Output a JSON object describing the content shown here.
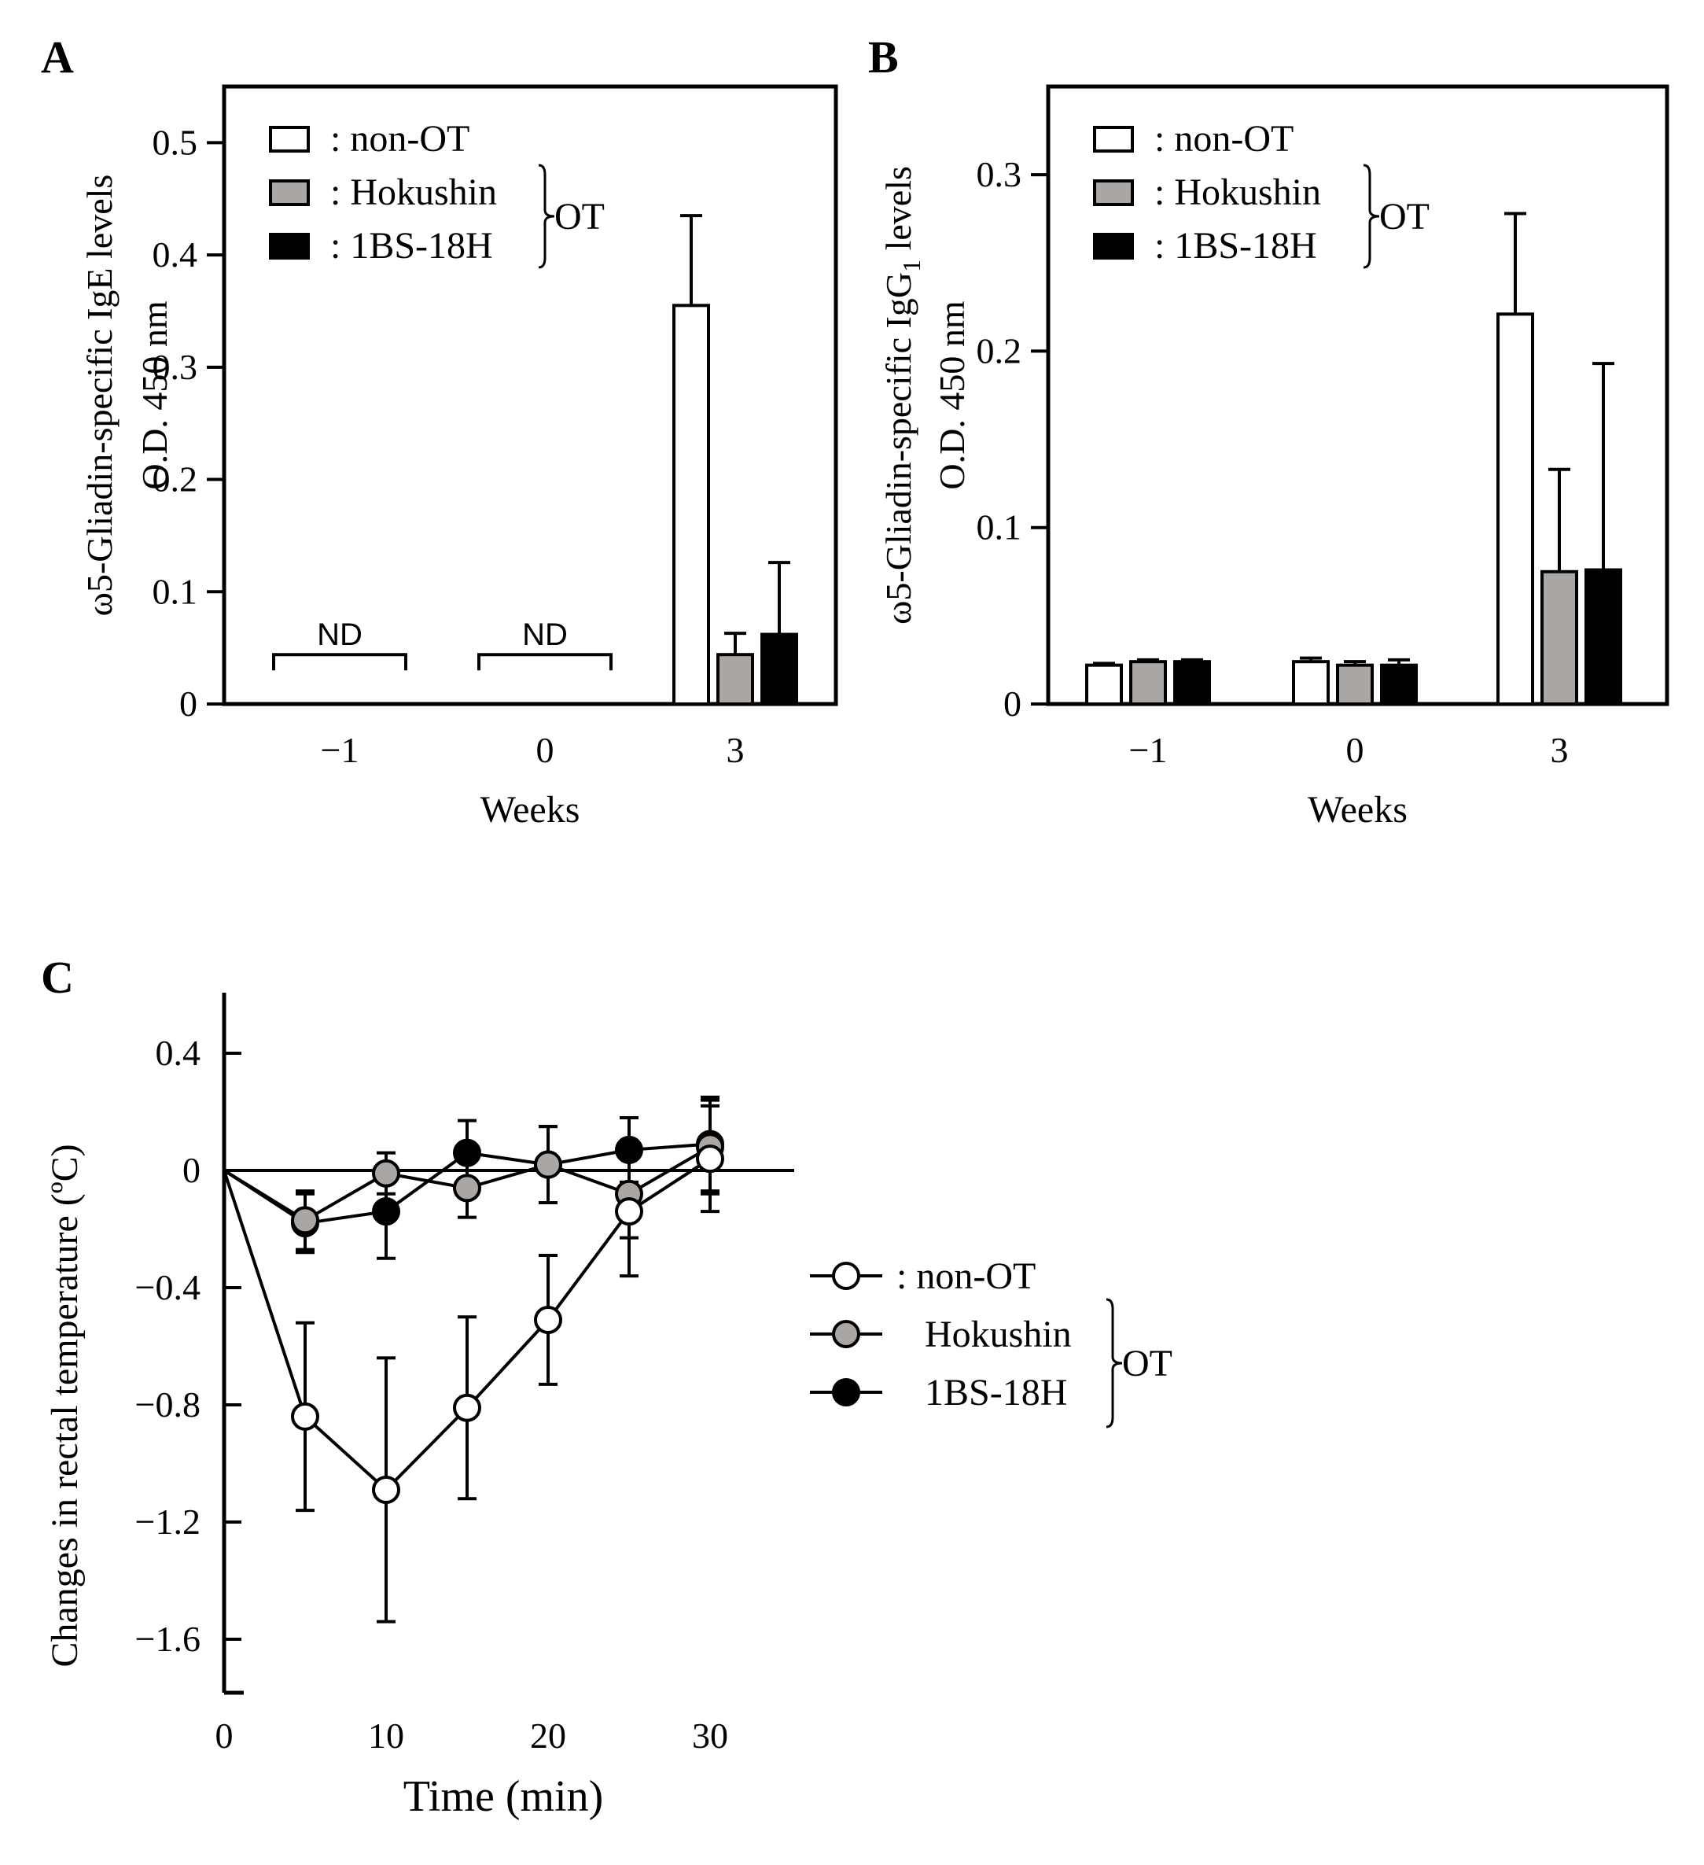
{
  "chart_data": [
    {
      "panel": "A",
      "type": "bar",
      "ylabel_line1_prefix": "ω5-Gliadin-specific IgE levels",
      "ylabel_line2": "O.D. 450 nm",
      "xlabel": "Weeks",
      "categories": [
        "−1",
        "0",
        "3"
      ],
      "ylim": [
        0,
        0.55
      ],
      "yticks": [
        0,
        0.1,
        0.2,
        0.3,
        0.4,
        0.5
      ],
      "ytick_labels": [
        "0",
        "0.1",
        "0.2",
        "0.3",
        "0.4",
        "0.5"
      ],
      "not_detected_label": "ND",
      "not_detected_categories": [
        0,
        1
      ],
      "series": [
        {
          "name": ": non-OT",
          "color": "#ffffff",
          "values": [
            null,
            null,
            0.355
          ],
          "errors": [
            null,
            null,
            0.08
          ]
        },
        {
          "name": ": Hokushin",
          "color": "#aaa6a3",
          "values": [
            null,
            null,
            0.044
          ],
          "errors": [
            null,
            null,
            0.019
          ]
        },
        {
          "name": ": 1BS-18H",
          "color": "#000000",
          "values": [
            null,
            null,
            0.062
          ],
          "errors": [
            null,
            null,
            0.064
          ]
        }
      ],
      "group_label": "OT"
    },
    {
      "panel": "B",
      "type": "bar",
      "ylabel_line1_prefix": "ω5-Gliadin-specific IgG",
      "ylabel_sub": "1",
      "ylabel_line1_suffix": " levels",
      "ylabel_line2": "O.D. 450 nm",
      "xlabel": "Weeks",
      "categories": [
        "−1",
        "0",
        "3"
      ],
      "ylim": [
        0,
        0.35
      ],
      "yticks": [
        0,
        0.1,
        0.2,
        0.3
      ],
      "ytick_labels": [
        "0",
        "0.1",
        "0.2",
        "0.3"
      ],
      "series": [
        {
          "name": ": non-OT",
          "color": "#ffffff",
          "values": [
            0.022,
            0.024,
            0.221
          ],
          "errors": [
            0.001,
            0.002,
            0.057
          ]
        },
        {
          "name": ": Hokushin",
          "color": "#aaa6a3",
          "values": [
            0.024,
            0.022,
            0.075
          ],
          "errors": [
            0.001,
            0.002,
            0.058
          ]
        },
        {
          "name": ": 1BS-18H",
          "color": "#000000",
          "values": [
            0.024,
            0.022,
            0.076
          ],
          "errors": [
            0.001,
            0.003,
            0.117
          ]
        }
      ],
      "group_label": "OT"
    },
    {
      "panel": "C",
      "type": "line",
      "ylabel": "Changes in rectal temperature (ºC)",
      "xlabel": "Time  (min)",
      "xlim": [
        0,
        35
      ],
      "ylim": [
        -1.85,
        0.6
      ],
      "xticks": [
        0,
        10,
        20,
        30
      ],
      "xtick_labels": [
        "0",
        "10",
        "20",
        "30"
      ],
      "yticks": [
        0.4,
        0,
        -0.4,
        -0.8,
        -1.2,
        -1.6
      ],
      "ytick_labels": [
        "0.4",
        "0",
        "−0.4",
        "−0.8",
        "−1.2",
        "−1.6"
      ],
      "x": [
        0,
        5,
        10,
        15,
        20,
        25,
        30
      ],
      "series": [
        {
          "name": ": non-OT",
          "color": "#ffffff",
          "values": [
            0,
            -0.84,
            -1.09,
            -0.81,
            -0.51,
            -0.14,
            0.04
          ],
          "errors": [
            0,
            0.32,
            0.45,
            0.31,
            0.22,
            0.22,
            0.18
          ]
        },
        {
          "name": "Hokushin",
          "color": "#aaa6a3",
          "values": [
            0,
            -0.17,
            -0.01,
            -0.06,
            0.02,
            -0.08,
            0.08
          ],
          "errors": [
            0,
            0.1,
            0.07,
            0.1,
            0.13,
            0.15,
            0.16
          ]
        },
        {
          "name": "1BS-18H",
          "color": "#000000",
          "values": [
            0,
            -0.18,
            -0.14,
            0.06,
            0.02,
            0.07,
            0.09
          ],
          "errors": [
            0,
            0.1,
            0.16,
            0.11,
            0.13,
            0.11,
            0.16
          ]
        }
      ],
      "group_label": "OT"
    }
  ],
  "panel_labels": {
    "a": "A",
    "b": "B",
    "c": "C"
  }
}
